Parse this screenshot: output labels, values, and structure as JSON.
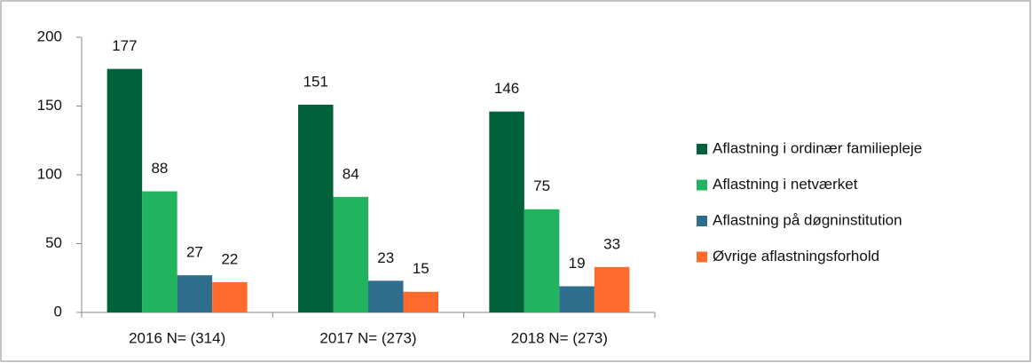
{
  "chart_data": {
    "type": "bar",
    "categories": [
      "2016 N= (314)",
      "2017 N= (273)",
      "2018 N= (273)"
    ],
    "series": [
      {
        "name": "Aflastning i ordinær familiepleje",
        "color": "#00613a",
        "values": [
          177,
          151,
          146
        ]
      },
      {
        "name": "Aflastning i netværket",
        "color": "#22b35e",
        "values": [
          88,
          84,
          75
        ]
      },
      {
        "name": "Aflastning på døgninstitution",
        "color": "#2e6e8c",
        "values": [
          27,
          23,
          19
        ]
      },
      {
        "name": "Øvrige aflastningsforhold",
        "color": "#ff6b2d",
        "values": [
          22,
          15,
          33
        ]
      }
    ],
    "ylim": [
      0,
      200
    ],
    "yticks": [
      0,
      50,
      100,
      150,
      200
    ],
    "grid": false,
    "legend": "right"
  }
}
